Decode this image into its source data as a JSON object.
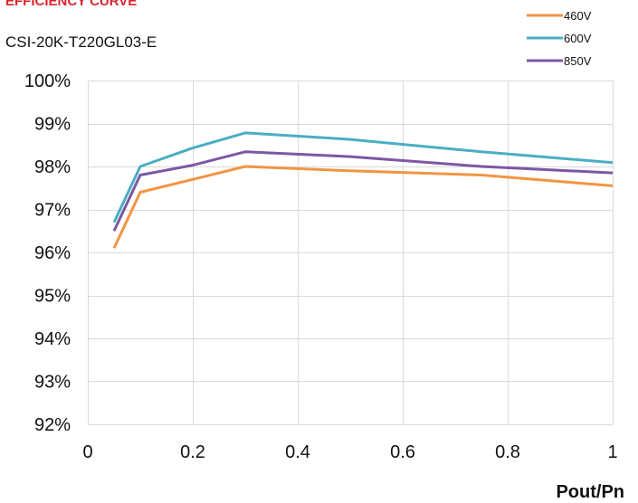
{
  "chart_data": {
    "type": "line",
    "title": "EFFICIENCY CURVE",
    "subtitle": "CSI-20K-T220GL03-E",
    "xlabel": "Pout/Pn",
    "ylabel": "",
    "xlim": [
      0,
      1
    ],
    "ylim": [
      0.92,
      1.0
    ],
    "x_ticks": [
      0,
      0.2,
      0.4,
      0.6,
      0.8,
      1
    ],
    "x_tick_labels": [
      "0",
      "0.2",
      "0.4",
      "0.6",
      "0.8",
      "1"
    ],
    "y_ticks": [
      0.92,
      0.93,
      0.94,
      0.95,
      0.96,
      0.97,
      0.98,
      0.99,
      1.0
    ],
    "y_tick_labels": [
      "92%",
      "93%",
      "94%",
      "95%",
      "96%",
      "97%",
      "98%",
      "99%",
      "100%"
    ],
    "grid": true,
    "legend_position": "top-right",
    "series": [
      {
        "name": "460V",
        "color": "#f29444",
        "points": [
          [
            0.05,
            0.961
          ],
          [
            0.1,
            0.974
          ],
          [
            0.2,
            0.977
          ],
          [
            0.3,
            0.98
          ],
          [
            0.5,
            0.979
          ],
          [
            0.75,
            0.978
          ],
          [
            1.0,
            0.9755
          ]
        ]
      },
      {
        "name": "600V",
        "color": "#4aaec4",
        "points": [
          [
            0.05,
            0.967
          ],
          [
            0.1,
            0.98
          ],
          [
            0.2,
            0.9843
          ],
          [
            0.3,
            0.9878
          ],
          [
            0.5,
            0.9863
          ],
          [
            0.75,
            0.9834
          ],
          [
            1.0,
            0.9809
          ]
        ]
      },
      {
        "name": "850V",
        "color": "#7b58a3",
        "points": [
          [
            0.05,
            0.965
          ],
          [
            0.1,
            0.978
          ],
          [
            0.2,
            0.9803
          ],
          [
            0.3,
            0.9834
          ],
          [
            0.5,
            0.9823
          ],
          [
            0.75,
            0.98
          ],
          [
            1.0,
            0.9785
          ]
        ]
      }
    ]
  }
}
